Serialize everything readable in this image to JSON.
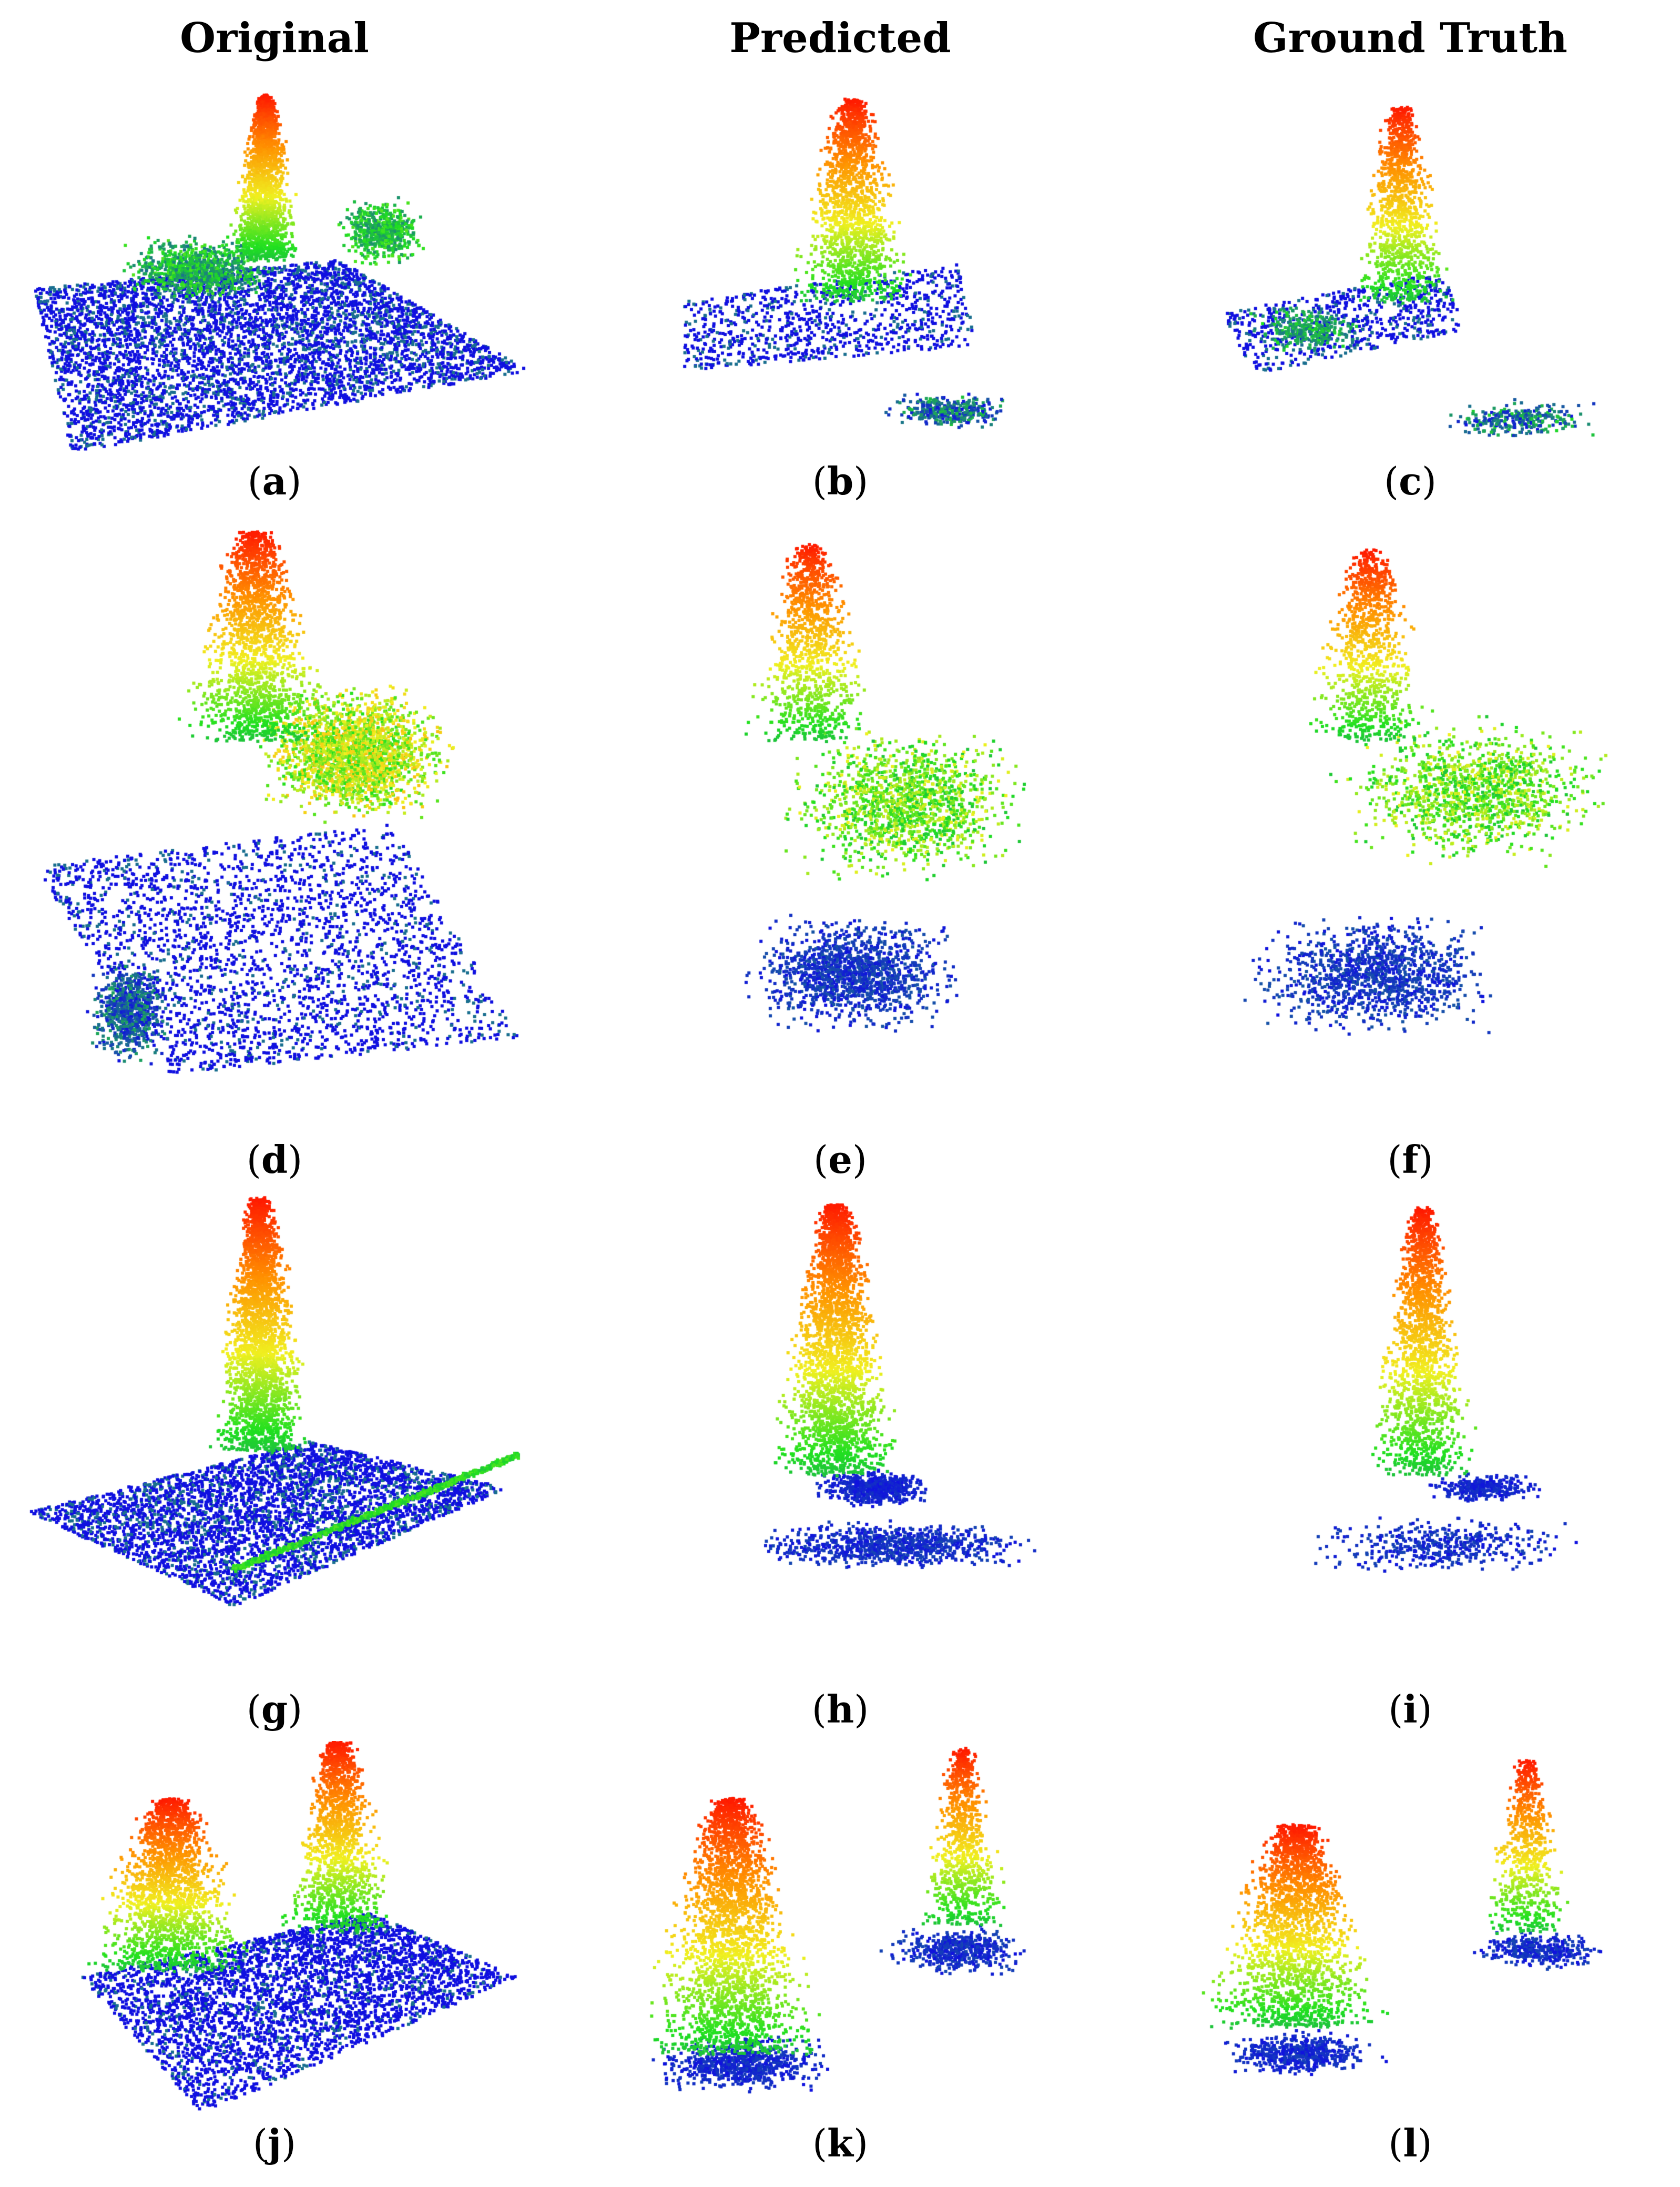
{
  "columns": [
    "Original",
    "Predicted",
    "Ground Truth"
  ],
  "panels": [
    {
      "label": "a",
      "kind": "original",
      "scene": 1
    },
    {
      "label": "b",
      "kind": "predicted",
      "scene": 1
    },
    {
      "label": "c",
      "kind": "truth",
      "scene": 1
    },
    {
      "label": "d",
      "kind": "original",
      "scene": 2
    },
    {
      "label": "e",
      "kind": "predicted",
      "scene": 2
    },
    {
      "label": "f",
      "kind": "truth",
      "scene": 2
    },
    {
      "label": "g",
      "kind": "original",
      "scene": 3
    },
    {
      "label": "h",
      "kind": "predicted",
      "scene": 3
    },
    {
      "label": "i",
      "kind": "truth",
      "scene": 3
    },
    {
      "label": "j",
      "kind": "original",
      "scene": 4
    },
    {
      "label": "k",
      "kind": "predicted",
      "scene": 4
    },
    {
      "label": "l",
      "kind": "truth",
      "scene": 4
    }
  ],
  "colors": {
    "low": "#1010e0",
    "teal": "#1a6f8f",
    "green": "#20e020",
    "yellow": "#f0f020",
    "orange": "#ff9000",
    "high": "#ff1a00"
  }
}
